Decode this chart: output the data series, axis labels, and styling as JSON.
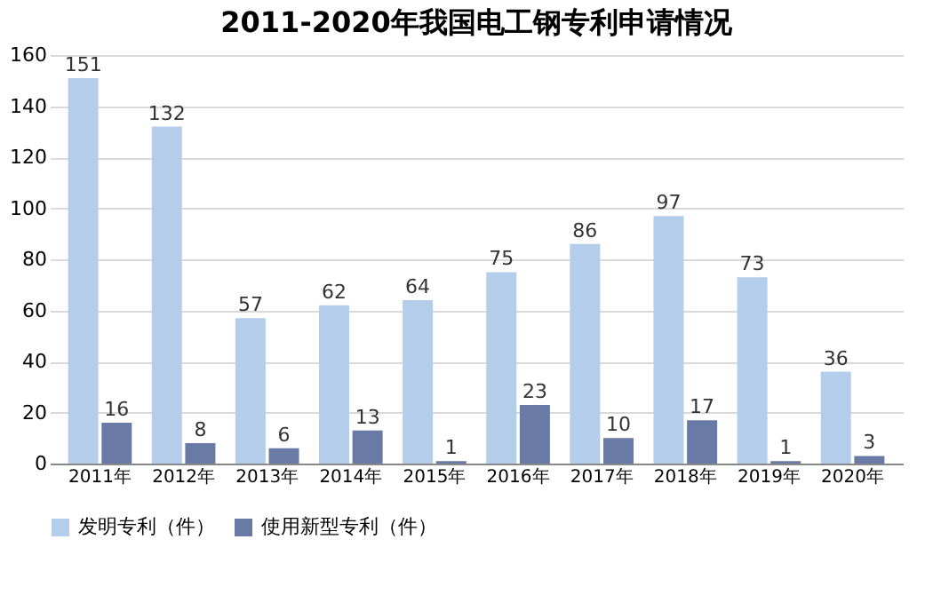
{
  "chart_data": {
    "type": "bar",
    "title": "2011-2020年我国电工钢专利申请情况",
    "categories": [
      "2011年",
      "2012年",
      "2013年",
      "2014年",
      "2015年",
      "2016年",
      "2017年",
      "2018年",
      "2019年",
      "2020年"
    ],
    "series": [
      {
        "name": "发明专利（件）",
        "color": "#b4cdea",
        "values": [
          151,
          132,
          57,
          62,
          64,
          75,
          86,
          97,
          73,
          36
        ]
      },
      {
        "name": "使用新型专利（件）",
        "color": "#6a7aa6",
        "values": [
          16,
          8,
          6,
          13,
          1,
          23,
          10,
          17,
          1,
          3
        ]
      }
    ],
    "ylim": [
      0,
      160
    ],
    "yticks": [
      0,
      20,
      40,
      60,
      80,
      100,
      120,
      140,
      160
    ],
    "grid": "y",
    "legend": "bottom",
    "data_labels": true
  }
}
